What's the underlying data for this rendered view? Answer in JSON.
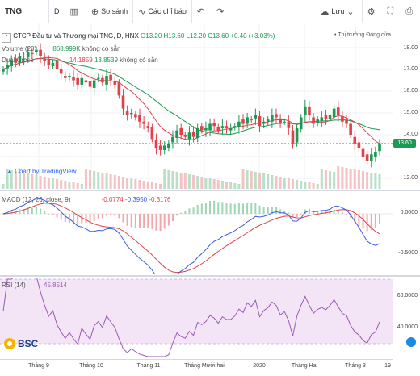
{
  "toolbar": {
    "symbol": "TNG",
    "interval": "D",
    "compare_label": "So sánh",
    "indicators_label": "Các chỉ báo",
    "save_label": "Lưu"
  },
  "main": {
    "title": "CTCP Đầu tư và Thương mại TNG, D, HNX",
    "o": "O13.20",
    "h": "H13.60",
    "l": "L12.20",
    "c": "C13.60",
    "chg": "+0.40 (+3.03%)",
    "market_label": "• Thị trường Đóng cửa",
    "volume_label": "Volume (20)",
    "volume_value": "868.999K",
    "volume_na": "không có sẵn",
    "cross_label": "Dual Cross",
    "cross_val1": "14.1859",
    "cross_val2": "13.8539",
    "cross_na": "không có sẵn",
    "chart_by": "Chart by TradingView",
    "price_tag": "13.60",
    "y_labels": [
      "18.00",
      "17.00",
      "16.00",
      "15.00",
      "14.00",
      "12.00"
    ]
  },
  "macd": {
    "label": "MACD (12, 26, close, 9)",
    "v1": "-0.0774",
    "v2": "-0.3950",
    "v3": "-0.3176",
    "y_labels": [
      "0.0000",
      "-0.5000"
    ]
  },
  "rsi": {
    "label": "RSI (14)",
    "value": "45.8514",
    "y_labels": [
      "60.0000",
      "40.0000"
    ]
  },
  "x_axis": [
    "Tháng 9",
    "Tháng 10",
    "Tháng 11",
    "Tháng Mười hai",
    "2020",
    "Tháng Hai",
    "Tháng 3",
    "19"
  ],
  "logo": "BSC",
  "colors": {
    "up": "#1a9a52",
    "down": "#e0424a",
    "macd": "#3b5bdb",
    "signal": "#e0424a",
    "rsi": "#9b59b6",
    "rsi_bg": "#f3e5f5"
  },
  "chart_data": {
    "type": "candlestick",
    "close": [
      17.0,
      17.2,
      17.4,
      17.3,
      17.6,
      17.5,
      17.8,
      17.7,
      17.9,
      17.6,
      17.4,
      17.2,
      17.3,
      17.0,
      16.8,
      16.6,
      16.7,
      16.5,
      16.3,
      16.6,
      16.4,
      16.2,
      16.5,
      16.6,
      16.4,
      16.7,
      16.5,
      16.3,
      15.8,
      15.2,
      14.9,
      15.0,
      14.8,
      14.6,
      14.5,
      14.3,
      13.8,
      13.4,
      13.3,
      13.5,
      13.6,
      13.9,
      14.2,
      14.0,
      13.9,
      14.1,
      13.9,
      14.3,
      14.2,
      14.3,
      14.5,
      14.4,
      14.2,
      14.4,
      14.3,
      14.3,
      14.4,
      14.6,
      14.5,
      14.8,
      14.7,
      14.9,
      14.4,
      14.6,
      14.7,
      14.9,
      14.8,
      14.5,
      14.6,
      14.3,
      13.6,
      14.3,
      14.8,
      15.3,
      14.9,
      14.5,
      14.7,
      14.8,
      14.7,
      14.9,
      15.2,
      14.9,
      14.6,
      14.5,
      14.0,
      13.6,
      13.4,
      13.0,
      12.8,
      13.1,
      13.2,
      13.6
    ]
  }
}
